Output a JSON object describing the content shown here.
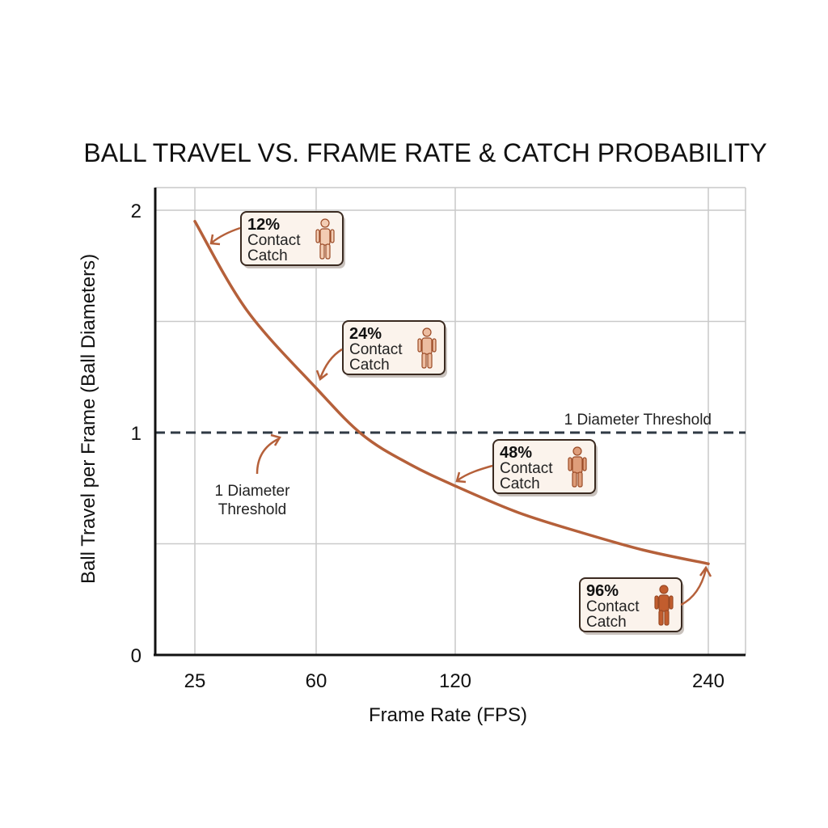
{
  "chart_data": {
    "type": "line",
    "title": "BALL TRAVEL VS. FRAME RATE & CATCH PROBABILITY",
    "xlabel": "Frame Rate (FPS)",
    "ylabel": "Ball Travel per Frame (Ball Diameters)",
    "x_ticks": [
      25,
      60,
      120,
      240
    ],
    "y_ticks": [
      0,
      1,
      2
    ],
    "ylim": [
      0,
      2.1
    ],
    "grid": true,
    "series": [
      {
        "color": "#b5603a",
        "x": [
          25,
          40,
          60,
          80,
          100,
          120,
          150,
          180,
          210,
          240
        ],
        "y": [
          1.95,
          1.55,
          1.2,
          0.99,
          0.86,
          0.76,
          0.64,
          0.55,
          0.47,
          0.41
        ]
      }
    ],
    "threshold": {
      "value": 1,
      "label": "1 Diameter Threshold",
      "label_line1": "1 Diameter",
      "label_line2": "Threshold",
      "color": "#2f3a44"
    },
    "annotations": [
      {
        "percent": "12%",
        "line1": "Contact",
        "line2": "Catch",
        "x": 25,
        "y": 1.95,
        "fill_level": 0.12,
        "icon": "person-icon"
      },
      {
        "percent": "24%",
        "line1": "Contact",
        "line2": "Catch",
        "x": 60,
        "y": 1.2,
        "fill_level": 0.24,
        "icon": "person-icon"
      },
      {
        "percent": "48%",
        "line1": "Contact",
        "line2": "Catch",
        "x": 120,
        "y": 0.76,
        "fill_level": 0.48,
        "icon": "person-icon"
      },
      {
        "percent": "96%",
        "line1": "Contact",
        "line2": "Catch",
        "x": 240,
        "y": 0.41,
        "fill_level": 0.96,
        "icon": "person-icon"
      }
    ]
  }
}
